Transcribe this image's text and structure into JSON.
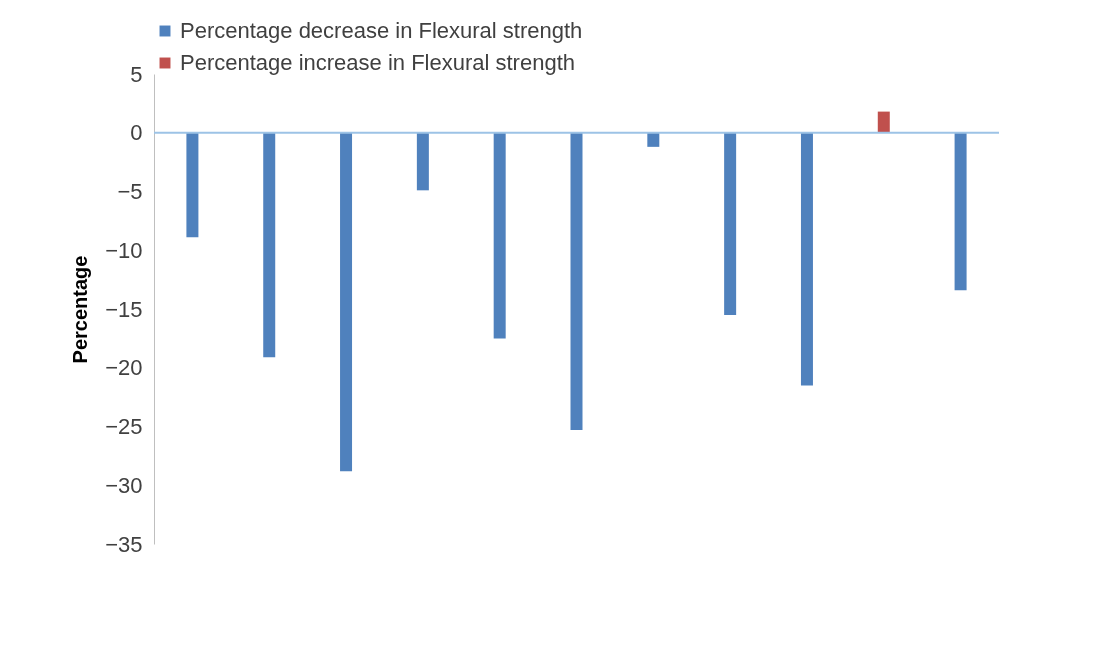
{
  "chart_data": {
    "type": "bar",
    "ylabel": "Percentage",
    "categories": [
      null,
      null,
      null,
      null,
      null,
      null,
      null,
      null,
      null,
      null,
      null
    ],
    "series": [
      {
        "name": "Percentage decrease in Flexural  strength",
        "color": "#4f81bd",
        "values": [
          -8.9,
          -19.1,
          -28.8,
          -4.9,
          -17.5,
          -25.3,
          -1.2,
          -15.5,
          -21.5,
          null,
          -13.4
        ]
      },
      {
        "name": "Percentage increase in Flexural strength",
        "color": "#c0504d",
        "values": [
          null,
          null,
          null,
          null,
          null,
          null,
          null,
          null,
          null,
          1.8,
          null
        ]
      }
    ],
    "ylim": [
      -35,
      5
    ],
    "yticks": [
      5,
      0,
      -5,
      -10,
      -15,
      -20,
      -25,
      -30,
      -35
    ],
    "ref_lines": [
      {
        "axis": "y",
        "value": 0,
        "color": "#9dc3e6"
      }
    ],
    "grid": false,
    "legend": "top",
    "tick_labels": "y"
  }
}
